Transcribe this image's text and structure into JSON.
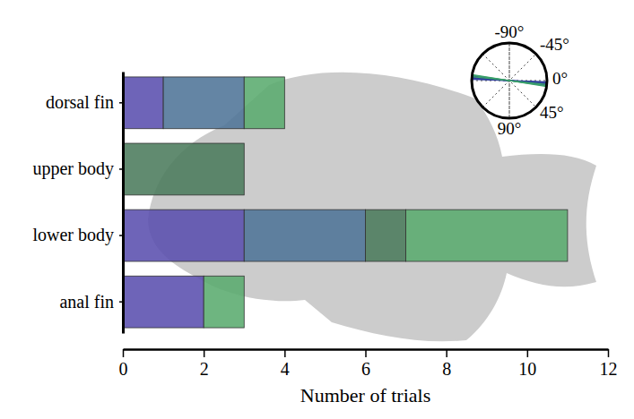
{
  "chart_data": [
    {
      "type": "bar",
      "orientation": "horizontal",
      "stacked": true,
      "categories": [
        "dorsal fin",
        "upper body",
        "lower body",
        "anal fin"
      ],
      "series": [
        {
          "color": "#5a4fae",
          "values": [
            1,
            0,
            3,
            2
          ]
        },
        {
          "color": "#4e7497",
          "values": [
            2,
            0,
            3,
            0
          ]
        },
        {
          "color": "#4b7b5c",
          "values": [
            0,
            3,
            1,
            0
          ]
        },
        {
          "color": "#5aab6e",
          "values": [
            1,
            0,
            4,
            1
          ]
        }
      ],
      "x_label": "Number of trials",
      "xlim": [
        0,
        12
      ],
      "xticks": [
        0,
        2,
        4,
        6,
        8,
        10,
        12
      ],
      "grid": false
    },
    {
      "type": "polar",
      "xlim": [
        -90,
        90
      ],
      "xticks": [
        {
          "value": 90,
          "label": "90°"
        },
        {
          "value": 45,
          "label": "45°"
        },
        {
          "value": 0,
          "label": "0°"
        },
        {
          "value": -45,
          "label": "-45°"
        },
        {
          "value": -90,
          "label": "-90°"
        }
      ],
      "grid": true,
      "series": [
        {
          "color": "#2e3d9c",
          "values": [
            -2,
            -3,
            -4,
            -5,
            -6,
            -7
          ]
        },
        {
          "color": "#3aa06a",
          "values": [
            -6,
            -8,
            -9
          ]
        }
      ]
    }
  ]
}
